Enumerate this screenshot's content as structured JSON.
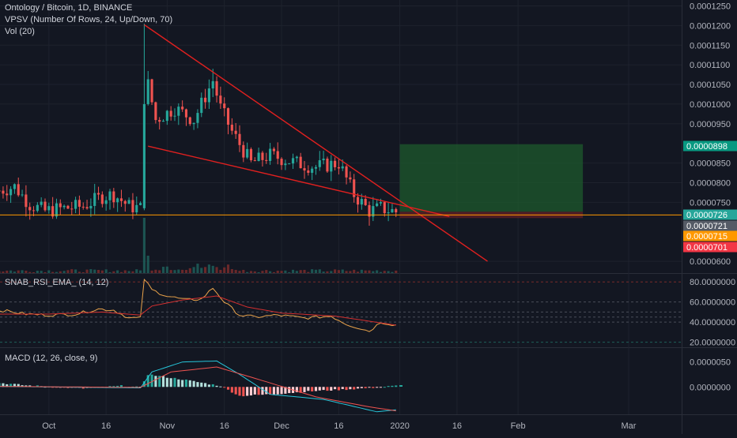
{
  "header": {
    "title": "Ontology / Bitcoin, 1D, BINANCE",
    "vpsv_label": "VPSV (Number Of Rows, 24, Up/Down, 70)",
    "vol_label": "Vol (20)"
  },
  "rsi_panel": {
    "label": "SNAB_RSI_EMA_ (14, 12)"
  },
  "macd_panel": {
    "label": "MACD (12, 26, close, 9)"
  },
  "colors": {
    "up": "#26a69a",
    "down": "#ef5350",
    "trendline": "#e0201f",
    "support": "#ff9800",
    "profit_zone": "#1e5a2c",
    "loss_zone": "#5a1e24",
    "rsi_line": "#e9a24a",
    "rsi_ema": "#d32f2f",
    "macd_line": "#26c6da",
    "signal_line": "#ef5350"
  },
  "chart_data": [
    {
      "type": "candlestick",
      "title": "Ontology / Bitcoin, 1D, BINANCE",
      "x_ticks": [
        "Oct",
        "16",
        "Nov",
        "16",
        "Dec",
        "16",
        "2020",
        "16",
        "Feb",
        "Mar"
      ],
      "y_ticks": [
        "0.0001250",
        "0.0001200",
        "0.0001150",
        "0.0001100",
        "0.0001050",
        "0.0001000",
        "0.0000950",
        "0.0000850",
        "0.0000800",
        "0.0000750",
        "0.0000600"
      ],
      "ylim": [
        5.7e-05,
        0.0001265
      ],
      "price_labels": [
        {
          "value": "0.0000898",
          "price": 8.98e-05,
          "color": "#089981"
        },
        {
          "value": "0.0000726",
          "price": 7.26e-05,
          "color": "#26a69a"
        },
        {
          "value": "0.0000721",
          "price": 7.21e-05,
          "color": "#555b66"
        },
        {
          "value": "0.0000715",
          "price": 7.15e-05,
          "color": "#ff9800"
        },
        {
          "value": "0.0000701",
          "price": 7.01e-05,
          "color": "#f23645"
        }
      ],
      "trendlines": [
        {
          "name": "upper",
          "from": [
            "2019-10-26",
            0.0001202
          ],
          "to": [
            "2020-01-24",
            6e-05
          ]
        },
        {
          "name": "lower",
          "from": [
            "2019-10-27",
            8.93e-05
          ],
          "to": [
            "2020-01-14",
            7.14e-05
          ]
        }
      ],
      "support_level": 7.18e-05,
      "position_zone": {
        "start": "2020-01-01",
        "end": "2020-02-18",
        "entry": 7.26e-05,
        "target": 8.98e-05,
        "stop": 7.1e-05
      },
      "anchors": [
        [
          "2019-09-18",
          7.8e-05
        ],
        [
          "2019-09-22",
          7.9e-05
        ],
        [
          "2019-09-26",
          7.45e-05
        ],
        [
          "2019-09-30",
          7.28e-05
        ],
        [
          "2019-10-05",
          7.35e-05
        ],
        [
          "2019-10-10",
          7.4e-05
        ],
        [
          "2019-10-15",
          7.65e-05
        ],
        [
          "2019-10-18",
          7.7e-05
        ],
        [
          "2019-10-22",
          7.4e-05
        ],
        [
          "2019-10-25",
          7.35e-05
        ],
        [
          "2019-10-26",
          0.0001
        ],
        [
          "2019-10-27",
          0.000105
        ],
        [
          "2019-10-29",
          9.6e-05
        ],
        [
          "2019-11-03",
          9.9e-05
        ],
        [
          "2019-11-08",
          9.6e-05
        ],
        [
          "2019-11-13",
          0.000106
        ],
        [
          "2019-11-15",
          9.9e-05
        ],
        [
          "2019-11-18",
          9.3e-05
        ],
        [
          "2019-11-23",
          8.5e-05
        ],
        [
          "2019-11-28",
          8.7e-05
        ],
        [
          "2019-12-05",
          8.5e-05
        ],
        [
          "2019-12-10",
          8.4e-05
        ],
        [
          "2019-12-16",
          8.5e-05
        ],
        [
          "2019-12-20",
          7.7e-05
        ],
        [
          "2019-12-24",
          7.28e-05
        ],
        [
          "2019-12-27",
          7.35e-05
        ],
        [
          "2019-12-31",
          7.26e-05
        ]
      ]
    },
    {
      "type": "line",
      "title": "SNAB_RSI_EMA_ (14, 12)",
      "y_ticks": [
        "80.0000000",
        "60.0000000",
        "40.0000000",
        "20.0000000"
      ],
      "ylim": [
        15,
        88
      ],
      "levels": [
        80,
        60,
        50,
        45,
        40,
        20
      ],
      "series": [
        {
          "points": [
            [
              "2019-09-18",
              52
            ],
            [
              "2019-09-25",
              48
            ],
            [
              "2019-10-01",
              47
            ],
            [
              "2019-10-08",
              48
            ],
            [
              "2019-10-14",
              53
            ],
            [
              "2019-10-18",
              52
            ],
            [
              "2019-10-22",
              44
            ],
            [
              "2019-10-25",
              44
            ],
            [
              "2019-10-26",
              83
            ],
            [
              "2019-10-28",
              72
            ],
            [
              "2019-11-01",
              66
            ],
            [
              "2019-11-06",
              62
            ],
            [
              "2019-11-10",
              63
            ],
            [
              "2019-11-13",
              74
            ],
            [
              "2019-11-16",
              60
            ],
            [
              "2019-11-20",
              47
            ],
            [
              "2019-11-24",
              45
            ],
            [
              "2019-11-30",
              47
            ],
            [
              "2019-12-07",
              44
            ],
            [
              "2019-12-14",
              46
            ],
            [
              "2019-12-18",
              38
            ],
            [
              "2019-12-24",
              31
            ],
            [
              "2019-12-27",
              40
            ],
            [
              "2019-12-31",
              37
            ]
          ]
        },
        {
          "points": [
            [
              "2019-09-18",
              48
            ],
            [
              "2019-10-01",
              48
            ],
            [
              "2019-10-15",
              50
            ],
            [
              "2019-10-25",
              47
            ],
            [
              "2019-10-28",
              56
            ],
            [
              "2019-11-05",
              62
            ],
            [
              "2019-11-14",
              66
            ],
            [
              "2019-11-22",
              55
            ],
            [
              "2019-12-01",
              49
            ],
            [
              "2019-12-15",
              46
            ],
            [
              "2019-12-31",
              37
            ]
          ]
        }
      ]
    },
    {
      "type": "bar",
      "title": "MACD (12, 26, close, 9)",
      "y_ticks": [
        "0.0000050",
        "0.0000000"
      ],
      "ylim": [
        -5.5e-06,
        7.8e-06
      ],
      "histogram_anchors": [
        [
          "2019-09-18",
          8e-07
        ],
        [
          "2019-09-25",
          3e-07
        ],
        [
          "2019-10-10",
          -3e-07
        ],
        [
          "2019-10-20",
          2e-07
        ],
        [
          "2019-10-25",
          -1e-07
        ],
        [
          "2019-10-27",
          2.5e-06
        ],
        [
          "2019-11-05",
          1.5e-06
        ],
        [
          "2019-11-15",
          2e-07
        ],
        [
          "2019-11-20",
          -1.8e-06
        ],
        [
          "2019-11-28",
          -1.5e-06
        ],
        [
          "2019-12-10",
          -8e-07
        ],
        [
          "2019-12-20",
          -4e-07
        ],
        [
          "2019-12-31",
          2e-07
        ]
      ],
      "series": [
        {
          "name": "MACD",
          "points": [
            [
              "2019-09-18",
              1e-07
            ],
            [
              "2019-10-25",
              -2e-07
            ],
            [
              "2019-10-28",
              3e-06
            ],
            [
              "2019-11-05",
              5e-06
            ],
            [
              "2019-11-14",
              5.2e-06
            ],
            [
              "2019-11-20",
              2.5e-06
            ],
            [
              "2019-11-28",
              -1.5e-06
            ],
            [
              "2019-12-12",
              -2.5e-06
            ],
            [
              "2019-12-26",
              -5e-06
            ],
            [
              "2019-12-31",
              -4.6e-06
            ]
          ]
        },
        {
          "name": "Signal",
          "points": [
            [
              "2019-09-18",
              1e-07
            ],
            [
              "2019-10-25",
              -1e-07
            ],
            [
              "2019-11-02",
              3e-06
            ],
            [
              "2019-11-14",
              4e-06
            ],
            [
              "2019-11-25",
              1.5e-06
            ],
            [
              "2019-12-10",
              -2e-06
            ],
            [
              "2019-12-24",
              -4e-06
            ],
            [
              "2019-12-31",
              -4.8e-06
            ]
          ]
        }
      ]
    }
  ]
}
